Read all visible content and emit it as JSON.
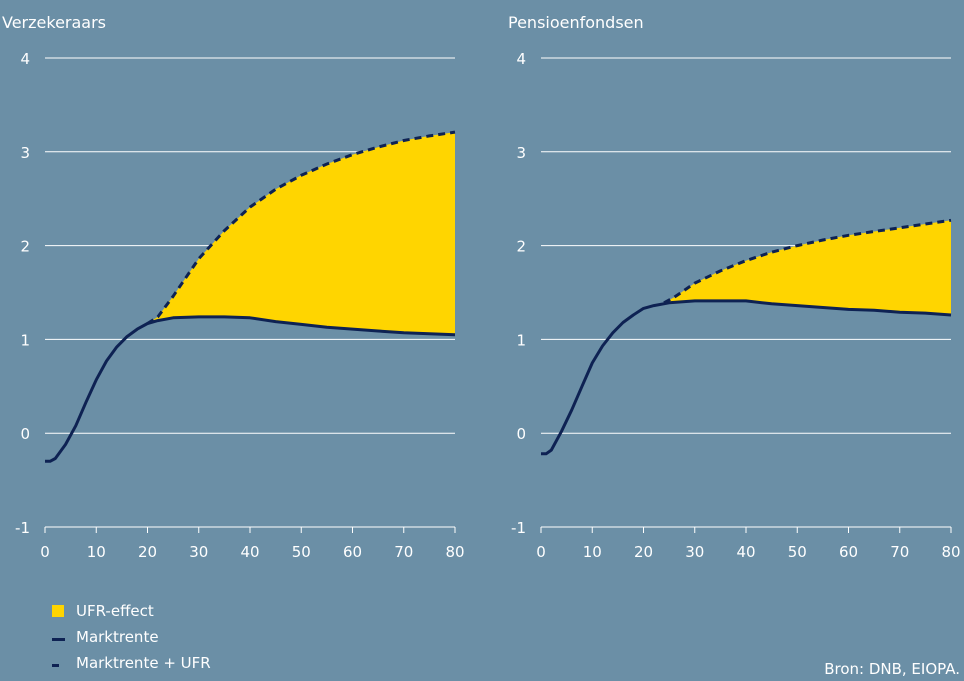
{
  "colors": {
    "background": "#6b8fa6",
    "gridline": "#ffffff",
    "ufr_fill": "#ffd500",
    "line": "#0e2253",
    "text": "#ffffff"
  },
  "chart_data": [
    {
      "type": "area",
      "title": "Verzekeraars",
      "xlim": [
        0,
        80
      ],
      "ylim": [
        -1,
        4
      ],
      "xticks": [
        0,
        10,
        20,
        30,
        40,
        50,
        60,
        70,
        80
      ],
      "yticks": [
        -1,
        0,
        1,
        2,
        3,
        4
      ],
      "grid": true,
      "series": [
        {
          "name": "Marktrente",
          "style": "solid",
          "x": [
            0,
            1,
            2,
            4,
            6,
            8,
            10,
            12,
            14,
            16,
            18,
            20,
            22,
            25,
            30,
            35,
            40,
            45,
            50,
            55,
            60,
            65,
            70,
            75,
            80
          ],
          "y": [
            -0.3,
            -0.3,
            -0.27,
            -0.12,
            0.08,
            0.33,
            0.57,
            0.77,
            0.92,
            1.03,
            1.11,
            1.17,
            1.2,
            1.23,
            1.24,
            1.24,
            1.23,
            1.19,
            1.16,
            1.13,
            1.11,
            1.09,
            1.07,
            1.06,
            1.05
          ]
        },
        {
          "name": "Marktrente + UFR",
          "style": "dashed",
          "x": [
            20,
            22,
            25,
            30,
            35,
            40,
            45,
            50,
            55,
            60,
            65,
            70,
            75,
            80
          ],
          "y": [
            1.17,
            1.24,
            1.46,
            1.86,
            2.16,
            2.41,
            2.6,
            2.75,
            2.87,
            2.97,
            3.05,
            3.12,
            3.17,
            3.21
          ]
        }
      ]
    },
    {
      "type": "area",
      "title": "Pensioenfondsen",
      "xlim": [
        0,
        80
      ],
      "ylim": [
        -1,
        4
      ],
      "xticks": [
        0,
        10,
        20,
        30,
        40,
        50,
        60,
        70,
        80
      ],
      "yticks": [
        -1,
        0,
        1,
        2,
        3,
        4
      ],
      "grid": true,
      "series": [
        {
          "name": "Marktrente",
          "style": "solid",
          "x": [
            0,
            1,
            2,
            4,
            6,
            8,
            10,
            12,
            14,
            16,
            18,
            20,
            22,
            25,
            30,
            35,
            40,
            45,
            50,
            55,
            60,
            65,
            70,
            75,
            80
          ],
          "y": [
            -0.22,
            -0.22,
            -0.18,
            0.02,
            0.25,
            0.5,
            0.75,
            0.93,
            1.07,
            1.18,
            1.26,
            1.33,
            1.36,
            1.39,
            1.41,
            1.41,
            1.41,
            1.38,
            1.36,
            1.34,
            1.32,
            1.31,
            1.29,
            1.28,
            1.26
          ]
        },
        {
          "name": "Marktrente + UFR",
          "style": "dashed",
          "x": [
            24,
            26,
            30,
            35,
            40,
            45,
            50,
            55,
            60,
            65,
            70,
            75,
            80
          ],
          "y": [
            1.39,
            1.45,
            1.6,
            1.73,
            1.84,
            1.93,
            2.0,
            2.06,
            2.11,
            2.15,
            2.19,
            2.23,
            2.27
          ]
        }
      ]
    }
  ],
  "legend": {
    "ufr": "UFR-effect",
    "market": "Marktrente",
    "market_ufr": "Marktrente + UFR"
  },
  "source": "Bron: DNB, EIOPA."
}
